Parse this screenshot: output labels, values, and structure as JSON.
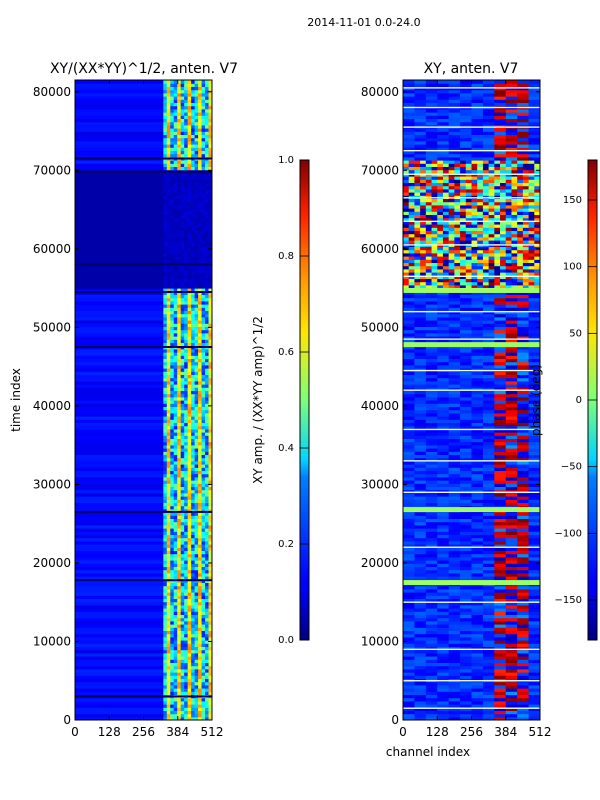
{
  "suptitle": "2014-11-01 0.0-24.0",
  "chart_data": [
    {
      "type": "heatmap",
      "title": "XY/(XX*YY)^1/2, anten. V7",
      "xlabel": "",
      "ylabel": "time index",
      "xlim": [
        0,
        512
      ],
      "ylim": [
        0,
        81500
      ],
      "xticks": [
        "0",
        "128",
        "256",
        "384",
        "512"
      ],
      "yticks": [
        "0",
        "10000",
        "20000",
        "30000",
        "40000",
        "50000",
        "60000",
        "70000",
        "80000"
      ],
      "colorbar": {
        "label": "XY amp. / (XX*YY amp)^1/2",
        "range": [
          0.0,
          1.0
        ],
        "ticks": [
          "0.0",
          "0.2",
          "0.4",
          "0.6",
          "0.8",
          "1.0"
        ]
      }
    },
    {
      "type": "heatmap",
      "title": "XY, anten. V7",
      "xlabel": "channel index",
      "ylabel": "",
      "xlim": [
        0,
        512
      ],
      "ylim": [
        0,
        81500
      ],
      "xticks": [
        "0",
        "128",
        "256",
        "384",
        "512"
      ],
      "yticks": [
        "0",
        "10000",
        "20000",
        "30000",
        "40000",
        "50000",
        "60000",
        "70000",
        "80000"
      ],
      "colorbar": {
        "label": "phase (deg)",
        "range": [
          -180,
          180
        ],
        "ticks": [
          "−150",
          "−100",
          "−50",
          "0",
          "50",
          "100",
          "150"
        ]
      }
    }
  ]
}
